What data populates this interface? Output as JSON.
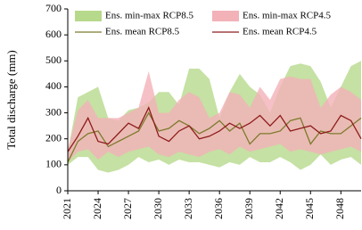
{
  "chart_data": {
    "type": "band-line",
    "y_label": "Total discharge (mm)",
    "x": [
      2021,
      2022,
      2023,
      2024,
      2025,
      2026,
      2027,
      2028,
      2029,
      2030,
      2031,
      2032,
      2033,
      2034,
      2035,
      2036,
      2037,
      2038,
      2039,
      2040,
      2041,
      2042,
      2043,
      2044,
      2045,
      2046,
      2047,
      2048,
      2049,
      2050
    ],
    "xlim": [
      2021,
      2050
    ],
    "xticks": [
      2021,
      2024,
      2027,
      2030,
      2033,
      2036,
      2039,
      2042,
      2045,
      2048
    ],
    "ylim": [
      0,
      700
    ],
    "yticks": [
      0,
      100,
      200,
      300,
      400,
      500,
      600,
      700
    ],
    "legend": "top",
    "series": [
      {
        "name": "Ens. min-max RCP8.5",
        "kind": "band",
        "color": "#b7d98c",
        "low": [
          100,
          130,
          130,
          80,
          70,
          80,
          100,
          130,
          110,
          120,
          100,
          120,
          110,
          110,
          100,
          90,
          110,
          100,
          130,
          110,
          110,
          130,
          110,
          80,
          100,
          140,
          100,
          120,
          130,
          100
        ],
        "high": [
          150,
          360,
          380,
          400,
          280,
          270,
          310,
          320,
          340,
          380,
          380,
          330,
          470,
          470,
          430,
          280,
          380,
          450,
          400,
          370,
          300,
          400,
          480,
          490,
          480,
          420,
          320,
          400,
          480,
          500
        ]
      },
      {
        "name": "Ens. min-max RCP4.5",
        "kind": "band",
        "color": "#f2b2b8",
        "low": [
          110,
          150,
          160,
          120,
          150,
          130,
          150,
          160,
          170,
          140,
          130,
          150,
          140,
          130,
          150,
          160,
          140,
          170,
          150,
          160,
          170,
          180,
          150,
          160,
          150,
          140,
          150,
          160,
          170,
          150
        ],
        "high": [
          160,
          310,
          350,
          280,
          280,
          280,
          300,
          320,
          460,
          300,
          300,
          350,
          380,
          360,
          280,
          300,
          380,
          370,
          320,
          400,
          350,
          430,
          440,
          430,
          430,
          320,
          370,
          400,
          380,
          350
        ]
      },
      {
        "name": "Ens. mean RCP8.5",
        "kind": "line",
        "color": "#7d7a2e",
        "values": [
          110,
          190,
          220,
          230,
          170,
          190,
          210,
          230,
          300,
          230,
          240,
          270,
          250,
          220,
          240,
          270,
          230,
          260,
          180,
          220,
          220,
          230,
          270,
          280,
          180,
          230,
          220,
          220,
          250,
          280
        ]
      },
      {
        "name": "Ens. mean RCP4.5",
        "kind": "line",
        "color": "#8e1c1c",
        "values": [
          150,
          210,
          280,
          190,
          180,
          220,
          260,
          240,
          320,
          210,
          190,
          230,
          250,
          200,
          210,
          230,
          260,
          240,
          260,
          290,
          250,
          290,
          230,
          240,
          250,
          220,
          230,
          290,
          270,
          200
        ]
      }
    ]
  }
}
